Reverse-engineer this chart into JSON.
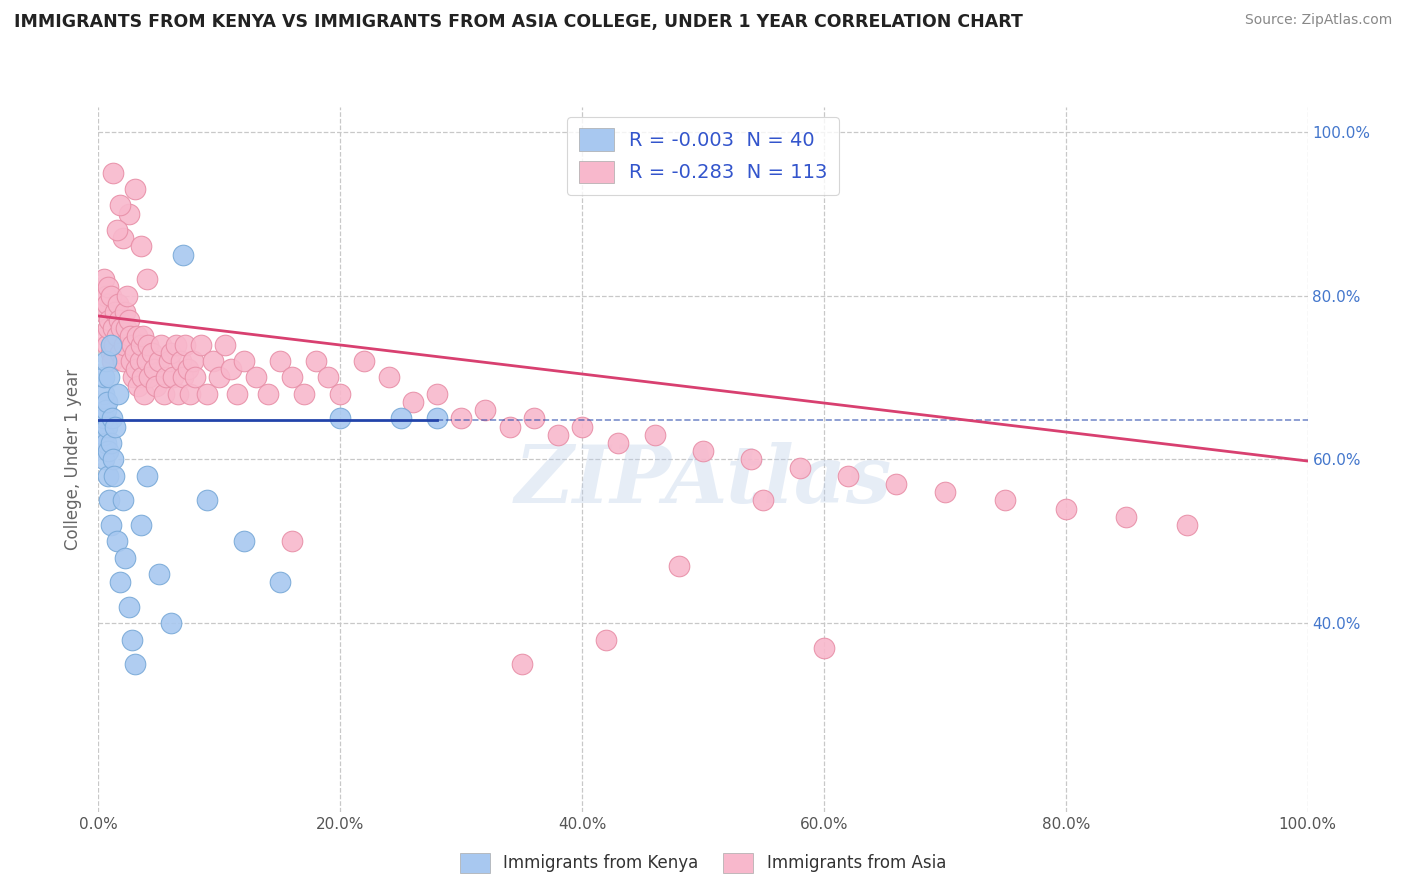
{
  "title": "IMMIGRANTS FROM KENYA VS IMMIGRANTS FROM ASIA COLLEGE, UNDER 1 YEAR CORRELATION CHART",
  "source": "Source: ZipAtlas.com",
  "ylabel": "College, Under 1 year",
  "kenya_R": -0.003,
  "kenya_N": 40,
  "asia_R": -0.283,
  "asia_N": 113,
  "xlim": [
    0,
    1.0
  ],
  "ylim": [
    0.17,
    1.03
  ],
  "x_ticks": [
    0.0,
    0.2,
    0.4,
    0.6,
    0.8,
    1.0
  ],
  "x_tick_labels": [
    "0.0%",
    "20.0%",
    "40.0%",
    "60.0%",
    "80.0%",
    "100.0%"
  ],
  "y_ticks": [
    0.4,
    0.6,
    0.8,
    1.0
  ],
  "y_tick_labels": [
    "40.0%",
    "60.0%",
    "80.0%",
    "100.0%"
  ],
  "watermark": "ZIPAtlas",
  "background_color": "#ffffff",
  "grid_color": "#c8c8c8",
  "kenya_color": "#a8c8f0",
  "kenya_edge": "#7aaad8",
  "asia_color": "#f8b8cc",
  "asia_edge": "#e890a8",
  "trend_kenya_color": "#2244aa",
  "trend_asia_color": "#d84070",
  "kenya_trend_x_start": 0.0,
  "kenya_trend_x_end": 0.28,
  "kenya_trend_y_start": 0.648,
  "kenya_trend_y_end": 0.648,
  "asia_trend_x_start": 0.0,
  "asia_trend_x_end": 1.0,
  "asia_trend_y_start": 0.775,
  "asia_trend_y_end": 0.598,
  "kenya_x": [
    0.005,
    0.005,
    0.005,
    0.005,
    0.005,
    0.006,
    0.006,
    0.006,
    0.007,
    0.007,
    0.008,
    0.008,
    0.009,
    0.009,
    0.01,
    0.01,
    0.01,
    0.011,
    0.012,
    0.013,
    0.014,
    0.015,
    0.016,
    0.018,
    0.02,
    0.022,
    0.025,
    0.028,
    0.03,
    0.035,
    0.04,
    0.05,
    0.06,
    0.07,
    0.09,
    0.12,
    0.15,
    0.2,
    0.25,
    0.28
  ],
  "kenya_y": [
    0.6,
    0.63,
    0.65,
    0.68,
    0.7,
    0.62,
    0.66,
    0.72,
    0.64,
    0.67,
    0.58,
    0.61,
    0.55,
    0.7,
    0.52,
    0.62,
    0.74,
    0.65,
    0.6,
    0.58,
    0.64,
    0.5,
    0.68,
    0.45,
    0.55,
    0.48,
    0.42,
    0.38,
    0.35,
    0.52,
    0.58,
    0.46,
    0.4,
    0.85,
    0.55,
    0.5,
    0.45,
    0.65,
    0.65,
    0.65
  ],
  "asia_x": [
    0.005,
    0.005,
    0.006,
    0.006,
    0.007,
    0.007,
    0.008,
    0.008,
    0.009,
    0.01,
    0.01,
    0.011,
    0.012,
    0.013,
    0.014,
    0.015,
    0.016,
    0.017,
    0.018,
    0.019,
    0.02,
    0.021,
    0.022,
    0.023,
    0.024,
    0.025,
    0.026,
    0.027,
    0.028,
    0.029,
    0.03,
    0.031,
    0.032,
    0.033,
    0.034,
    0.035,
    0.036,
    0.037,
    0.038,
    0.04,
    0.041,
    0.042,
    0.044,
    0.046,
    0.048,
    0.05,
    0.052,
    0.054,
    0.056,
    0.058,
    0.06,
    0.062,
    0.064,
    0.066,
    0.068,
    0.07,
    0.072,
    0.074,
    0.076,
    0.078,
    0.08,
    0.085,
    0.09,
    0.095,
    0.1,
    0.105,
    0.11,
    0.115,
    0.12,
    0.13,
    0.14,
    0.15,
    0.16,
    0.17,
    0.18,
    0.19,
    0.2,
    0.22,
    0.24,
    0.26,
    0.28,
    0.3,
    0.32,
    0.34,
    0.36,
    0.38,
    0.4,
    0.43,
    0.46,
    0.5,
    0.54,
    0.58,
    0.62,
    0.66,
    0.7,
    0.75,
    0.8,
    0.85,
    0.9,
    0.55,
    0.6,
    0.42,
    0.48,
    0.16,
    0.35,
    0.02,
    0.025,
    0.03,
    0.035,
    0.04,
    0.012,
    0.015,
    0.018
  ],
  "asia_y": [
    0.78,
    0.82,
    0.75,
    0.8,
    0.74,
    0.79,
    0.76,
    0.81,
    0.77,
    0.73,
    0.8,
    0.72,
    0.76,
    0.74,
    0.78,
    0.75,
    0.79,
    0.77,
    0.73,
    0.76,
    0.72,
    0.74,
    0.78,
    0.76,
    0.8,
    0.77,
    0.75,
    0.72,
    0.74,
    0.7,
    0.73,
    0.71,
    0.75,
    0.69,
    0.72,
    0.74,
    0.7,
    0.75,
    0.68,
    0.72,
    0.74,
    0.7,
    0.73,
    0.71,
    0.69,
    0.72,
    0.74,
    0.68,
    0.7,
    0.72,
    0.73,
    0.7,
    0.74,
    0.68,
    0.72,
    0.7,
    0.74,
    0.71,
    0.68,
    0.72,
    0.7,
    0.74,
    0.68,
    0.72,
    0.7,
    0.74,
    0.71,
    0.68,
    0.72,
    0.7,
    0.68,
    0.72,
    0.7,
    0.68,
    0.72,
    0.7,
    0.68,
    0.72,
    0.7,
    0.67,
    0.68,
    0.65,
    0.66,
    0.64,
    0.65,
    0.63,
    0.64,
    0.62,
    0.63,
    0.61,
    0.6,
    0.59,
    0.58,
    0.57,
    0.56,
    0.55,
    0.54,
    0.53,
    0.52,
    0.55,
    0.37,
    0.38,
    0.47,
    0.5,
    0.35,
    0.87,
    0.9,
    0.93,
    0.86,
    0.82,
    0.95,
    0.88,
    0.91
  ]
}
